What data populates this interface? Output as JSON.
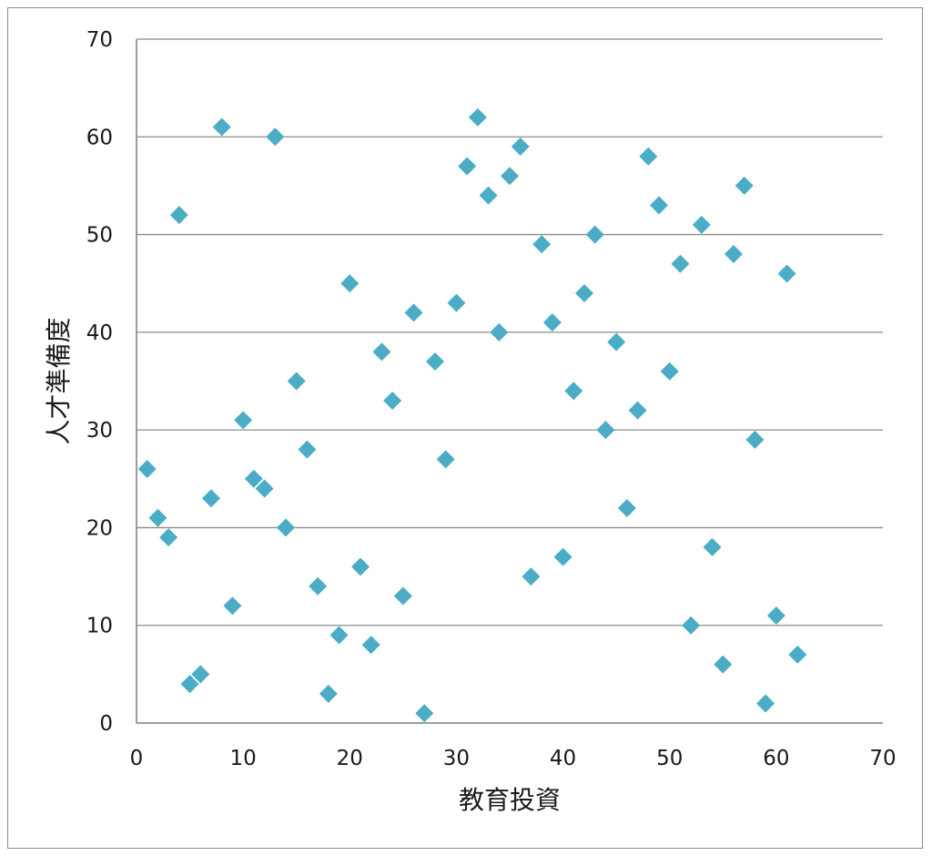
{
  "chart_data": {
    "type": "scatter",
    "title": "",
    "xlabel": "教育投資",
    "ylabel": "人才準備度",
    "xlim": [
      0,
      70
    ],
    "ylim": [
      0,
      70
    ],
    "xticks": [
      0,
      10,
      20,
      30,
      40,
      50,
      60,
      70
    ],
    "yticks": [
      0,
      10,
      20,
      30,
      40,
      50,
      60,
      70
    ],
    "horizontal_grid": true,
    "vertical_grid": false,
    "legend": "none",
    "marker": "diamond",
    "marker_color": "#4bacc6",
    "grid_color": "#8c8c8c",
    "axis_color": "#7f7f7f",
    "series": [
      {
        "points": [
          [
            1,
            26
          ],
          [
            2,
            21
          ],
          [
            3,
            19
          ],
          [
            4,
            52
          ],
          [
            5,
            4
          ],
          [
            6,
            5
          ],
          [
            7,
            23
          ],
          [
            8,
            61
          ],
          [
            9,
            12
          ],
          [
            10,
            31
          ],
          [
            11,
            25
          ],
          [
            12,
            24
          ],
          [
            13,
            60
          ],
          [
            14,
            20
          ],
          [
            15,
            35
          ],
          [
            16,
            28
          ],
          [
            17,
            14
          ],
          [
            18,
            3
          ],
          [
            19,
            9
          ],
          [
            20,
            45
          ],
          [
            21,
            16
          ],
          [
            22,
            8
          ],
          [
            23,
            38
          ],
          [
            24,
            33
          ],
          [
            25,
            13
          ],
          [
            26,
            42
          ],
          [
            27,
            1
          ],
          [
            28,
            37
          ],
          [
            29,
            27
          ],
          [
            30,
            43
          ],
          [
            31,
            57
          ],
          [
            32,
            62
          ],
          [
            33,
            54
          ],
          [
            34,
            40
          ],
          [
            35,
            56
          ],
          [
            36,
            59
          ],
          [
            37,
            15
          ],
          [
            38,
            49
          ],
          [
            39,
            41
          ],
          [
            40,
            17
          ],
          [
            41,
            34
          ],
          [
            42,
            44
          ],
          [
            43,
            50
          ],
          [
            44,
            30
          ],
          [
            45,
            39
          ],
          [
            46,
            22
          ],
          [
            47,
            32
          ],
          [
            48,
            58
          ],
          [
            49,
            53
          ],
          [
            50,
            36
          ],
          [
            51,
            47
          ],
          [
            52,
            10
          ],
          [
            53,
            51
          ],
          [
            54,
            18
          ],
          [
            55,
            6
          ],
          [
            56,
            48
          ],
          [
            57,
            55
          ],
          [
            58,
            29
          ],
          [
            59,
            2
          ],
          [
            60,
            11
          ],
          [
            61,
            46
          ],
          [
            62,
            7
          ]
        ]
      }
    ]
  }
}
